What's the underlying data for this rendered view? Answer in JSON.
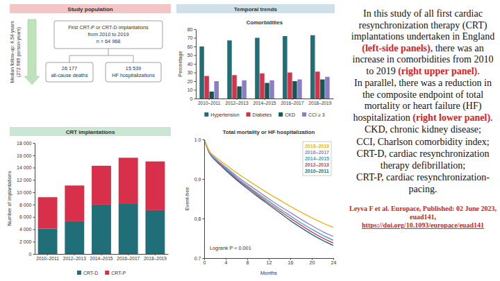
{
  "headers": [
    "Study population",
    "Temporal trends",
    "CRT implantations"
  ],
  "study_population": {
    "follow_up": [
      "Median follow-up: 4.54 years",
      "(272 989 person years)"
    ],
    "box": [
      "First CRT-P or CRT-D implantations",
      "from 2010 to 2019",
      "n = 64 968"
    ],
    "deaths": [
      "26 177",
      "all-cause deaths"
    ],
    "hospitalizations": [
      "15 539",
      "HF hospitalizations"
    ]
  },
  "chart_data": [
    {
      "type": "bar",
      "title": "Comorbidities",
      "y_label": "Percentage",
      "categories": [
        "2010–2011",
        "2012–2013",
        "2014–2015",
        "2016–2017",
        "2018–2019"
      ],
      "series": [
        {
          "name": "Hypertension",
          "color": "#1f6e78",
          "values": [
            60,
            67,
            70,
            72,
            73
          ]
        },
        {
          "name": "Diabetes",
          "color": "#d2344b",
          "values": [
            26,
            27,
            29,
            30,
            31
          ]
        },
        {
          "name": "CKD",
          "color": "#0d5b52",
          "values": [
            8,
            14,
            18,
            20,
            22
          ]
        },
        {
          "name": "CCI ≥ 3",
          "color": "#8a7ec6",
          "values": [
            20,
            21,
            21,
            22,
            25
          ]
        }
      ],
      "ylim": [
        0,
        80
      ],
      "yticks": [
        0,
        10,
        20,
        30,
        40,
        50,
        60,
        70,
        80
      ],
      "grid": false,
      "legend": "bottom"
    },
    {
      "type": "bar",
      "stacked": true,
      "y_label": "Number of implantations",
      "categories": [
        "2010–2011",
        "2012–2013",
        "2014–2015",
        "2016–2017",
        "2018–2019"
      ],
      "series": [
        {
          "name": "CRT-D",
          "color": "#1f6e78",
          "values": [
            4100,
            5300,
            8000,
            8200,
            7100
          ]
        },
        {
          "name": "CRT-P",
          "color": "#d8304a",
          "values": [
            5100,
            5800,
            6300,
            7400,
            7900
          ]
        }
      ],
      "ylim": [
        0,
        18000
      ],
      "yticks": [
        0,
        {
          "value": 2000,
          "label": "2 000"
        },
        {
          "value": 4000,
          "label": "4 000"
        },
        {
          "value": 6000,
          "label": "6 000"
        },
        {
          "value": 8000,
          "label": "8 000"
        },
        {
          "value": 10000,
          "label": "10 000"
        },
        {
          "value": 12000,
          "label": "12 000"
        },
        {
          "value": 14000,
          "label": "14 000"
        },
        {
          "value": 16000,
          "label": "16 000"
        },
        {
          "value": 18000,
          "label": "18 000"
        }
      ],
      "grid": false,
      "legend": "bottom"
    },
    {
      "type": "line",
      "title": "Total mortality or HF hospitalization",
      "x_label": "Months",
      "y_label": "Event-free",
      "annotation": "Logrank P < 0.001",
      "x": [
        0,
        1,
        2,
        3,
        4,
        6,
        8,
        10,
        12,
        14,
        16,
        18,
        20,
        22,
        24
      ],
      "series": [
        {
          "name": "2010–2011",
          "color": "#1f6e78",
          "values": [
            1,
            0.965,
            0.948,
            0.935,
            0.922,
            0.898,
            0.876,
            0.855,
            0.835,
            0.815,
            0.795,
            0.777,
            0.76,
            0.745,
            0.732
          ]
        },
        {
          "name": "2012–2013",
          "color": "#d8386a",
          "values": [
            1,
            0.966,
            0.95,
            0.937,
            0.925,
            0.901,
            0.88,
            0.859,
            0.839,
            0.82,
            0.801,
            0.783,
            0.766,
            0.751,
            0.738
          ]
        },
        {
          "name": "2014–2015",
          "color": "#3aa8c0",
          "values": [
            1,
            0.967,
            0.951,
            0.939,
            0.927,
            0.904,
            0.883,
            0.863,
            0.844,
            0.825,
            0.807,
            0.789,
            0.773,
            0.758,
            0.745
          ]
        },
        {
          "name": "2016–2017",
          "color": "#9a80d0",
          "values": [
            1,
            0.968,
            0.953,
            0.941,
            0.93,
            0.908,
            0.888,
            0.869,
            0.85,
            0.832,
            0.815,
            0.798,
            0.782,
            0.767,
            0.755
          ]
        },
        {
          "name": "2018–2019",
          "color": "#e8b820",
          "values": [
            1,
            0.97,
            0.957,
            0.946,
            0.936,
            0.916,
            0.898,
            0.88,
            0.863,
            0.847,
            0.831,
            0.816,
            0.802,
            0.789,
            0.778
          ]
        }
      ],
      "xlim": [
        0,
        24
      ],
      "xticks": [
        0,
        4,
        8,
        12,
        16,
        20,
        24
      ],
      "ylim": [
        0.7,
        1
      ],
      "yticks": [
        0.7,
        0.8,
        0.9,
        {
          "value": 1,
          "label": "1.0"
        }
      ],
      "grid": false,
      "legend": "top-right"
    }
  ],
  "caption": [
    [
      {
        "text": "In this study of all first cardiac resynchronization therapy (CRT) implantations undertaken in England",
        "highlight": false
      },
      {
        "text": "(left-side panels)",
        "highlight": true
      },
      {
        "text": ", there was an increase in comorbidities from 2010 to 2019",
        "highlight": false
      },
      {
        "text": "(right upper panel)",
        "highlight": true
      },
      {
        "text": ".",
        "highlight": false
      }
    ],
    [
      {
        "text": "In parallel, there was a reduction in the composite endpoint of total mortality or heart failure (HF) hospitalization",
        "highlight": false
      },
      {
        "text": "(right lower panel)",
        "highlight": true
      },
      {
        "text": ".",
        "highlight": false
      }
    ],
    [
      {
        "text": "CKD, chronic kidney disease;",
        "highlight": false
      }
    ],
    [
      {
        "text": "CCI, Charlson comorbidity index;",
        "highlight": false
      }
    ],
    [
      {
        "text": "CRT-D, cardiac resynchronization therapy defibrillation;",
        "highlight": false
      }
    ],
    [
      {
        "text": "CRT-P, cardiac resynchronization-pacing.",
        "highlight": false
      }
    ]
  ],
  "citation": {
    "text": "Leyva F et al. Europace, Published: 02 June 2023, euad141,",
    "url": "https://doi.org/10.1093/europace/euad141"
  }
}
